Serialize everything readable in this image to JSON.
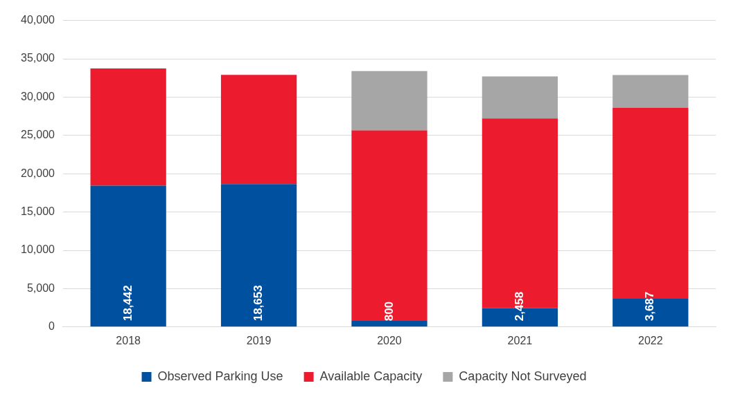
{
  "chart_data": {
    "type": "bar",
    "stacked": true,
    "categories": [
      "2018",
      "2019",
      "2020",
      "2021",
      "2022"
    ],
    "series": [
      {
        "name": "Observed Parking Use",
        "color": "#0050a0",
        "values": [
          18442,
          18653,
          800,
          2458,
          3687
        ],
        "value_labels": [
          "18,442",
          "18,653",
          "800",
          "2,458",
          "3,687"
        ]
      },
      {
        "name": "Available Capacity",
        "color": "#ed1b2e",
        "values": [
          15300,
          14250,
          24850,
          24750,
          24900
        ]
      },
      {
        "name": "Capacity Not Surveyed",
        "color": "#a6a6a6",
        "values": [
          null,
          null,
          7750,
          5500,
          4300
        ]
      }
    ],
    "ylim": [
      0,
      40000
    ],
    "yticks": [
      {
        "value": 0,
        "label": "0"
      },
      {
        "value": 5000,
        "label": "5,000"
      },
      {
        "value": 10000,
        "label": "10,000"
      },
      {
        "value": 15000,
        "label": "15,000"
      },
      {
        "value": 20000,
        "label": "20,000"
      },
      {
        "value": 25000,
        "label": "25,000"
      },
      {
        "value": 30000,
        "label": "30,000"
      },
      {
        "value": 35000,
        "label": "35,000"
      },
      {
        "value": 40000,
        "label": "40,000"
      }
    ],
    "grid": "y",
    "legend": "bottom"
  }
}
